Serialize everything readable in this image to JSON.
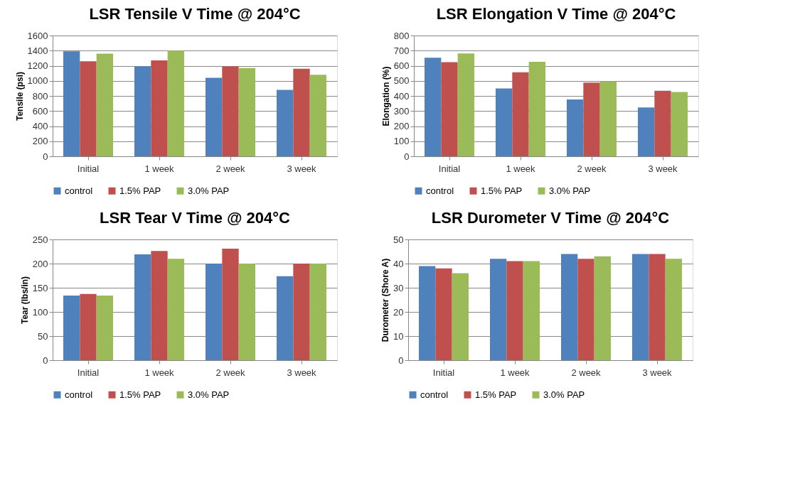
{
  "chart_data": [
    {
      "type": "bar",
      "title": "LSR Tensile V Time @ 204°C",
      "ylabel": "Tensile (psi)",
      "categories": [
        "Initial",
        "1 week",
        "2 week",
        "3 week"
      ],
      "ylim": [
        0,
        1600
      ],
      "yticks": [
        0,
        200,
        400,
        600,
        800,
        1000,
        1200,
        1400,
        1600
      ],
      "grid": "y",
      "legend": "bottom",
      "series": [
        {
          "name": "control",
          "color": "#4f81bd",
          "values": [
            1390,
            1190,
            1040,
            880
          ]
        },
        {
          "name": "1.5% PAP",
          "color": "#c0504d",
          "values": [
            1260,
            1270,
            1190,
            1160
          ]
        },
        {
          "name": "3.0% PAP",
          "color": "#9bbb59",
          "values": [
            1360,
            1400,
            1170,
            1080
          ]
        }
      ]
    },
    {
      "type": "bar",
      "title": "LSR Elongation V Time @ 204°C",
      "ylabel": "Elongation (%)",
      "categories": [
        "Initial",
        "1 week",
        "2 week",
        "3 week"
      ],
      "ylim": [
        0,
        800
      ],
      "yticks": [
        0,
        100,
        200,
        300,
        400,
        500,
        600,
        700,
        800
      ],
      "grid": "y",
      "legend": "bottom",
      "series": [
        {
          "name": "control",
          "color": "#4f81bd",
          "values": [
            653,
            450,
            376,
            324
          ]
        },
        {
          "name": "1.5% PAP",
          "color": "#c0504d",
          "values": [
            624,
            557,
            488,
            434
          ]
        },
        {
          "name": "3.0% PAP",
          "color": "#9bbb59",
          "values": [
            681,
            626,
            496,
            426
          ]
        }
      ]
    },
    {
      "type": "bar",
      "title": "LSR Tear V Time @ 204°C",
      "ylabel": "Tear (lbs/in)",
      "categories": [
        "Initial",
        "1 week",
        "2 week",
        "3 week"
      ],
      "ylim": [
        0,
        250
      ],
      "yticks": [
        0,
        50,
        100,
        150,
        200,
        250
      ],
      "grid": "y",
      "legend": "bottom",
      "series": [
        {
          "name": "control",
          "color": "#4f81bd",
          "values": [
            134,
            219,
            200,
            174
          ]
        },
        {
          "name": "1.5% PAP",
          "color": "#c0504d",
          "values": [
            137,
            226,
            231,
            200
          ]
        },
        {
          "name": "3.0% PAP",
          "color": "#9bbb59",
          "values": [
            134,
            210,
            200,
            200
          ]
        }
      ]
    },
    {
      "type": "bar",
      "title": "LSR Durometer V Time @ 204°C",
      "ylabel": "Durometer (Shore A)",
      "categories": [
        "Initial",
        "1 week",
        "2 week",
        "3 week"
      ],
      "ylim": [
        0,
        50
      ],
      "yticks": [
        0,
        10,
        20,
        30,
        40,
        50
      ],
      "grid": "y",
      "legend": "bottom",
      "series": [
        {
          "name": "control",
          "color": "#4f81bd",
          "values": [
            39,
            42,
            44,
            44
          ]
        },
        {
          "name": "1.5% PAP",
          "color": "#c0504d",
          "values": [
            38,
            41,
            42,
            44
          ]
        },
        {
          "name": "3.0% PAP",
          "color": "#9bbb59",
          "values": [
            36,
            41,
            43,
            42
          ]
        }
      ]
    }
  ]
}
